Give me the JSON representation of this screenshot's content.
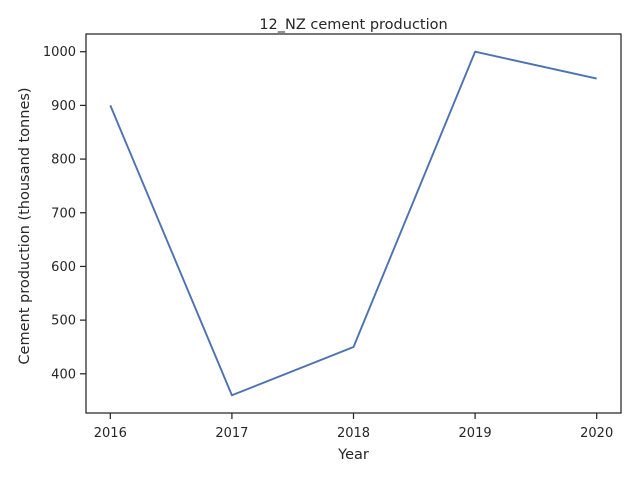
{
  "chart_data": {
    "type": "line",
    "title": "12_NZ cement production",
    "xlabel": "Year",
    "ylabel": "Cement production (thousand tonnes)",
    "x": [
      2016,
      2017,
      2018,
      2019,
      2020
    ],
    "series": [
      {
        "values": [
          900,
          360,
          450,
          1000,
          950
        ],
        "color": "#4c72b0"
      }
    ],
    "xticks": [
      "2016",
      "2017",
      "2018",
      "2019",
      "2020"
    ],
    "yticks": [
      400,
      500,
      600,
      700,
      800,
      900,
      1000
    ],
    "xlim": [
      2015.8,
      2020.2
    ],
    "ylim": [
      327,
      1033
    ],
    "grid": false
  }
}
